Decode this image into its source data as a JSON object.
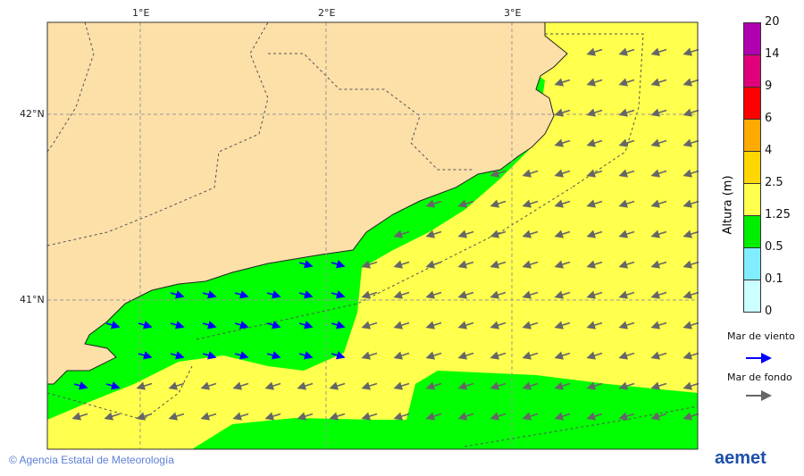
{
  "map": {
    "lon_labels": [
      "1°E",
      "2°E",
      "3°E"
    ],
    "lat_labels": [
      "42°N",
      "41°N"
    ],
    "colors": {
      "land": "#fde0a8",
      "sea_yellow": "#ffff4d",
      "sea_green": "#00ff00",
      "wind_arrow": "#0000ff",
      "swell_arrow": "#666666"
    }
  },
  "colorbar": {
    "title": "Altura (m)",
    "ticks": [
      "20",
      "14",
      "9",
      "6",
      "4",
      "2.5",
      "1.25",
      "0.5",
      "0.1",
      "0"
    ],
    "colors": [
      "#b000b0",
      "#e0007a",
      "#ff0000",
      "#ffaa00",
      "#ffd700",
      "#ffff4d",
      "#00ee00",
      "#80eeff",
      "#ccffff"
    ]
  },
  "legend": {
    "wind_sea": "Mar de viento",
    "swell": "Mar de fondo"
  },
  "footer": {
    "copyright": "© Agencia Estatal de Meteorología",
    "logo": "aemet"
  }
}
